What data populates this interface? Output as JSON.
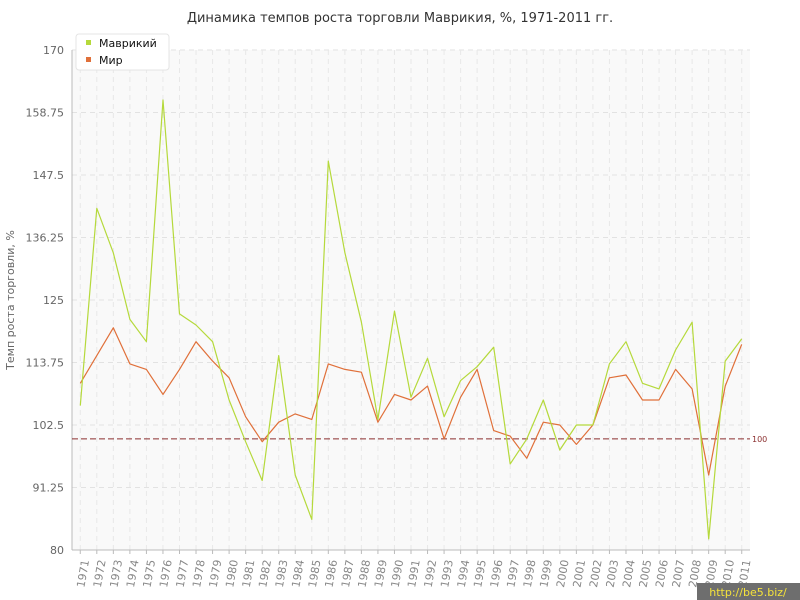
{
  "chart_data": {
    "type": "line",
    "title": "Динамика темпов роста торговли Маврикия, %, 1971-2011 гг.",
    "ylabel": "Темп роста торговли, %",
    "xlabel": "",
    "ylim": [
      80,
      170
    ],
    "yticks": [
      "80",
      "91.25",
      "102.5",
      "113.75",
      "125",
      "136.25",
      "147.5",
      "158.75",
      "170"
    ],
    "grid": true,
    "legend_position": "top-left",
    "x": [
      "1971",
      "1972",
      "1973",
      "1974",
      "1975",
      "1976",
      "1977",
      "1978",
      "1979",
      "1980",
      "1981",
      "1982",
      "1983",
      "1984",
      "1985",
      "1986",
      "1987",
      "1988",
      "1989",
      "1990",
      "1991",
      "1992",
      "1993",
      "1994",
      "1995",
      "1996",
      "1997",
      "1998",
      "1999",
      "2000",
      "2001",
      "2002",
      "2003",
      "2004",
      "2005",
      "2006",
      "2007",
      "2008",
      "2009",
      "2010",
      "2011"
    ],
    "series": [
      {
        "name": "Маврикий",
        "color": "#b5d93b",
        "values": [
          106,
          141.5,
          133.5,
          121.5,
          117.5,
          161,
          122.5,
          120.5,
          117.5,
          107,
          99.5,
          92.5,
          115,
          93.5,
          85.5,
          150,
          133.5,
          121,
          103.5,
          123,
          107.5,
          114.5,
          104,
          110.5,
          113,
          116.5,
          95.5,
          100,
          107,
          98,
          102.5,
          102.5,
          113.5,
          117.5,
          110,
          109,
          116,
          121,
          82,
          114,
          118
        ]
      },
      {
        "name": "Мир",
        "color": "#e0703a",
        "values": [
          110,
          115,
          120,
          113.5,
          112.5,
          108,
          112.5,
          117.5,
          114,
          111,
          104,
          99.5,
          103,
          104.5,
          103.5,
          113.5,
          112.5,
          112,
          103,
          108,
          107,
          109.5,
          100,
          107.5,
          112.5,
          101.5,
          100.5,
          96.5,
          103,
          102.5,
          99,
          102.5,
          111,
          111.5,
          107,
          107,
          112.5,
          109,
          93.5,
          109.5,
          117
        ]
      }
    ],
    "reference_line": {
      "value": 100,
      "label": "100",
      "color": "#8b2e2e"
    }
  },
  "watermark": {
    "text": "http://be5.biz/"
  }
}
